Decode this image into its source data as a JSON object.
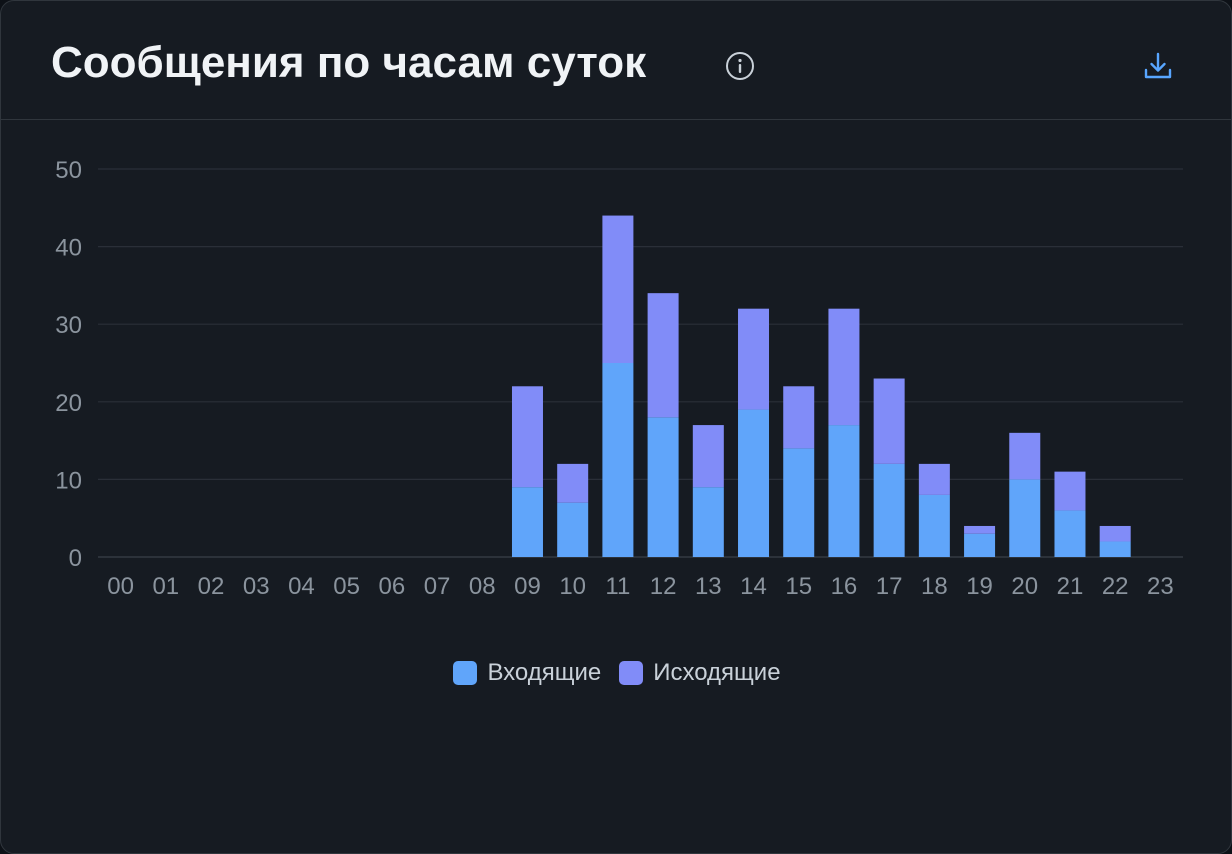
{
  "header": {
    "title": "Сообщения по часам суток",
    "info_icon": "info-icon",
    "download_icon": "download-icon"
  },
  "colors": {
    "incoming": "#60a5fa",
    "outgoing": "#818cf8",
    "grid": "#2a2f38",
    "tick_text": "#8b949e"
  },
  "chart_data": {
    "type": "bar",
    "stacked": true,
    "categories": [
      "00",
      "01",
      "02",
      "03",
      "04",
      "05",
      "06",
      "07",
      "08",
      "09",
      "10",
      "11",
      "12",
      "13",
      "14",
      "15",
      "16",
      "17",
      "18",
      "19",
      "20",
      "21",
      "22",
      "23"
    ],
    "series": [
      {
        "name": "Входящие",
        "color": "#60a5fa",
        "values": [
          0,
          0,
          0,
          0,
          0,
          0,
          0,
          0,
          0,
          9,
          7,
          25,
          18,
          9,
          19,
          14,
          17,
          12,
          8,
          3,
          10,
          6,
          2,
          0
        ]
      },
      {
        "name": "Исходящие",
        "color": "#818cf8",
        "values": [
          0,
          0,
          0,
          0,
          0,
          0,
          0,
          0,
          0,
          13,
          5,
          19,
          16,
          8,
          13,
          8,
          15,
          11,
          4,
          1,
          6,
          5,
          2,
          0
        ]
      }
    ],
    "y_ticks": [
      "0",
      "10",
      "20",
      "30",
      "40",
      "50"
    ],
    "ylim": [
      0,
      50
    ],
    "grid": true,
    "legend_position": "bottom-center"
  }
}
